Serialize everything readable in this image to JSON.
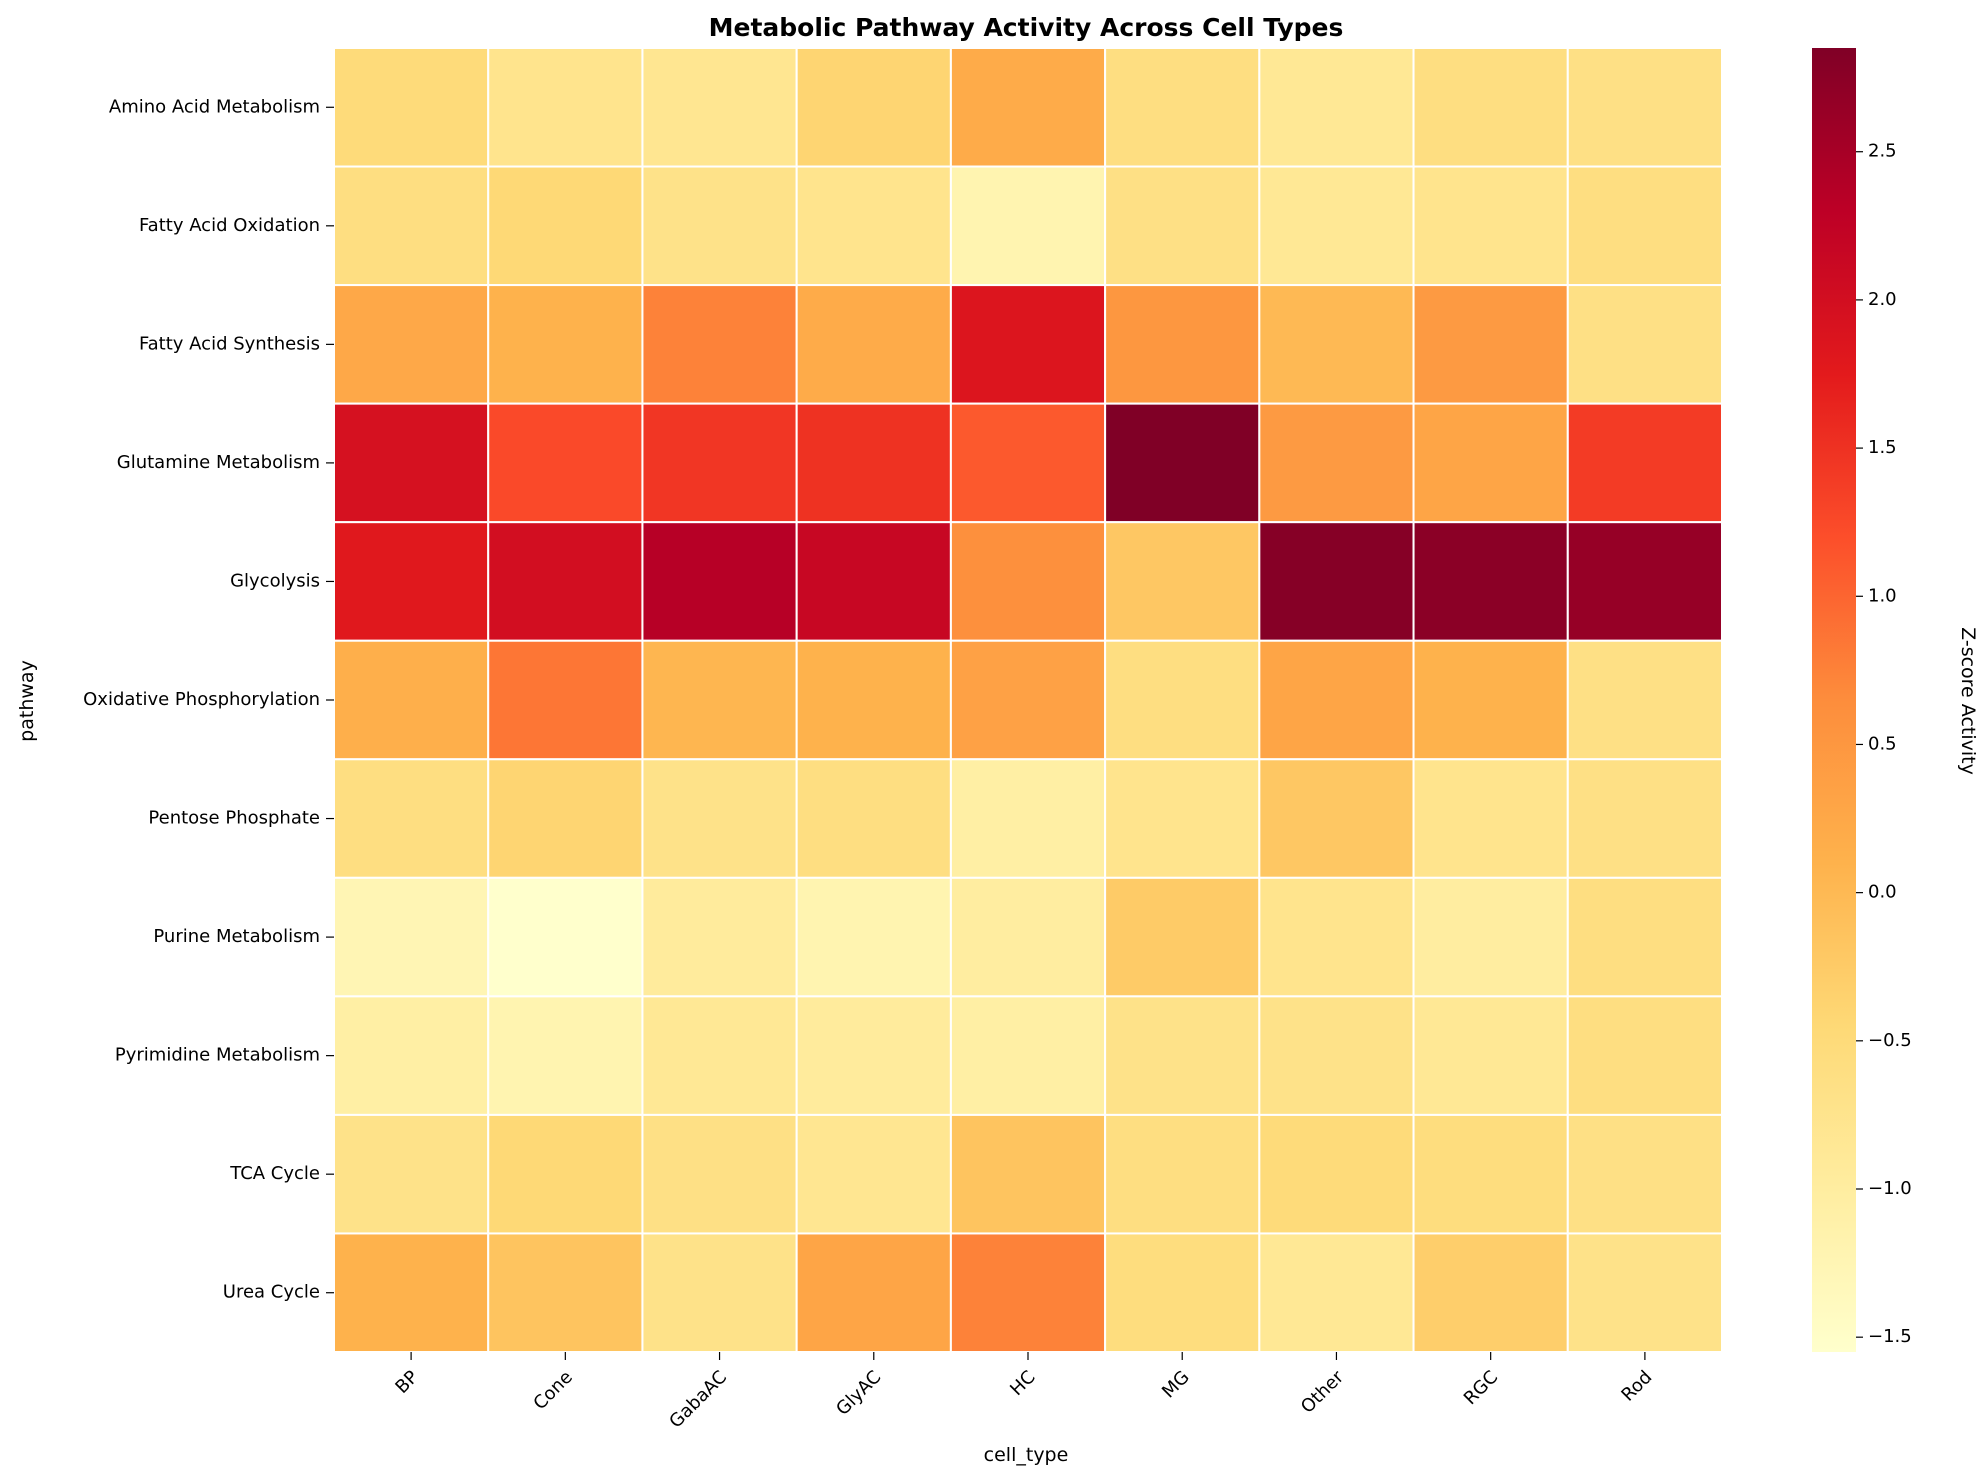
{
  "chart_data": {
    "type": "heatmap",
    "title": "Metabolic Pathway Activity Across Cell Types",
    "xlabel": "cell_type",
    "ylabel": "pathway",
    "colorbar_label": "Z-score Activity",
    "colormap": "YlOrRd",
    "vmin": -1.55,
    "vmax": 2.85,
    "colorbar_ticks": [
      {
        "value": 2.5,
        "label": "2.5"
      },
      {
        "value": 2.0,
        "label": "2.0"
      },
      {
        "value": 1.5,
        "label": "1.5"
      },
      {
        "value": 1.0,
        "label": "1.0"
      },
      {
        "value": 0.5,
        "label": "0.5"
      },
      {
        "value": 0.0,
        "label": "0.0"
      },
      {
        "value": -0.5,
        "label": "−0.5"
      },
      {
        "value": -1.0,
        "label": "−1.0"
      },
      {
        "value": -1.5,
        "label": "−1.5"
      }
    ],
    "x": [
      "BP",
      "Cone",
      "GabaAC",
      "GlyAC",
      "HC",
      "MG",
      "Other",
      "RGC",
      "Rod"
    ],
    "y": [
      "Amino Acid Metabolism",
      "Fatty Acid Oxidation",
      "Fatty Acid Synthesis",
      "Glutamine Metabolism",
      "Glycolysis",
      "Oxidative Phosphorylation",
      "Pentose Phosphate",
      "Purine Metabolism",
      "Pyrimidine Metabolism",
      "TCA Cycle",
      "Urea Cycle"
    ],
    "values": [
      [
        -0.5,
        -0.75,
        -0.8,
        -0.4,
        0.2,
        -0.6,
        -0.85,
        -0.6,
        -0.65
      ],
      [
        -0.6,
        -0.45,
        -0.7,
        -0.75,
        -1.2,
        -0.65,
        -0.85,
        -0.75,
        -0.6
      ],
      [
        0.25,
        0.1,
        0.75,
        0.2,
        1.85,
        0.5,
        0.0,
        0.45,
        -0.65
      ],
      [
        1.95,
        1.25,
        1.45,
        1.5,
        1.1,
        2.85,
        0.45,
        0.3,
        1.4
      ],
      [
        1.8,
        2.0,
        2.35,
        2.15,
        0.6,
        -0.2,
        2.8,
        2.75,
        2.65
      ],
      [
        0.15,
        0.85,
        0.05,
        0.1,
        0.35,
        -0.6,
        0.3,
        0.1,
        -0.65
      ],
      [
        -0.6,
        -0.4,
        -0.7,
        -0.6,
        -1.05,
        -0.75,
        -0.2,
        -0.75,
        -0.65
      ],
      [
        -1.25,
        -1.55,
        -0.95,
        -1.2,
        -1.0,
        -0.25,
        -0.75,
        -1.0,
        -0.6
      ],
      [
        -1.05,
        -1.2,
        -0.85,
        -0.95,
        -1.05,
        -0.7,
        -0.7,
        -0.85,
        -0.6
      ],
      [
        -0.7,
        -0.45,
        -0.65,
        -0.8,
        -0.15,
        -0.6,
        -0.5,
        -0.55,
        -0.65
      ],
      [
        0.1,
        -0.15,
        -0.7,
        0.3,
        0.75,
        -0.55,
        -0.85,
        -0.3,
        -0.7
      ]
    ]
  }
}
